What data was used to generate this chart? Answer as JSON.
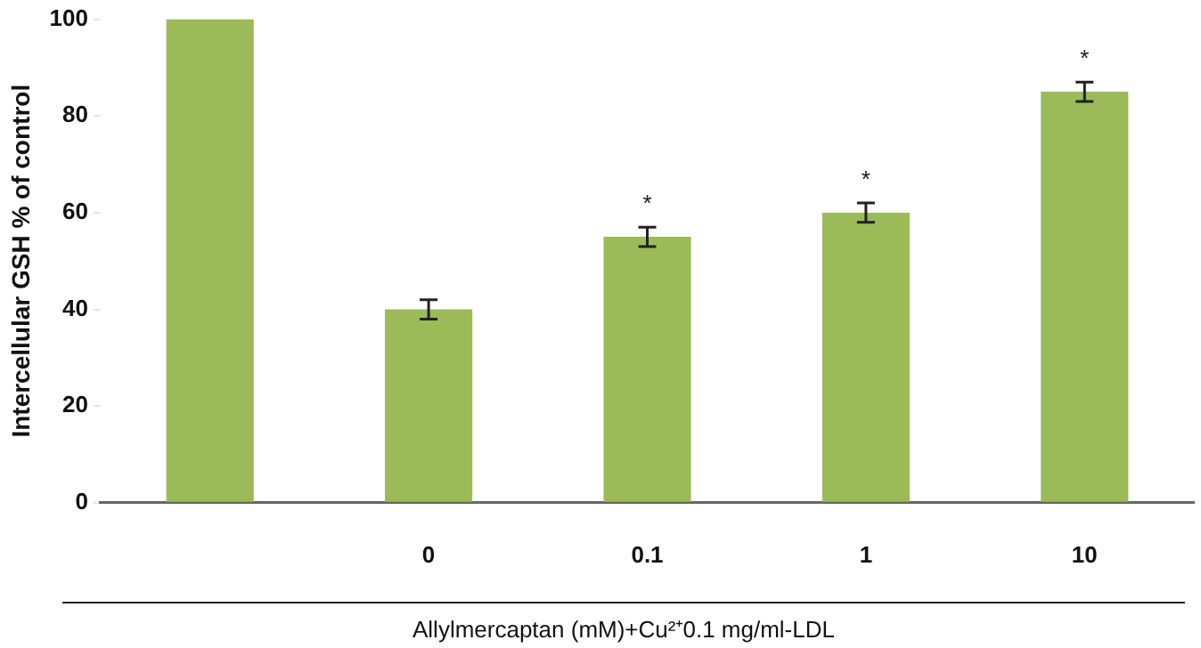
{
  "chart_data": {
    "type": "bar",
    "ylabel": "Intercellular GSH % of control",
    "xlabel": "Allylmercaptan (mM)+Cu²⁺0.1 mg/ml-LDL",
    "categories": [
      null,
      "0",
      "0.1",
      "1",
      "10"
    ],
    "values": [
      100,
      40,
      55,
      60,
      85
    ],
    "errors": [
      null,
      2,
      2,
      2,
      2
    ],
    "color": "#9bbb59",
    "ylim": [
      0,
      100
    ],
    "yticks": [
      0,
      20,
      40,
      60,
      80,
      100
    ],
    "grid": false,
    "legend": false,
    "annotations": [
      {
        "text": "*",
        "x": "0.1",
        "y": 57
      },
      {
        "text": "*",
        "x": "1",
        "y": 62
      },
      {
        "text": "*",
        "x": "10",
        "y": 87
      }
    ]
  }
}
